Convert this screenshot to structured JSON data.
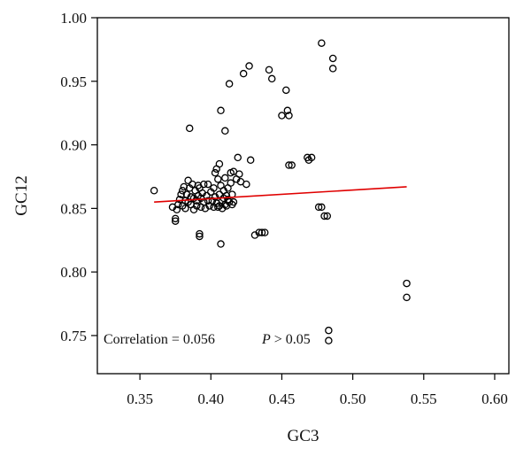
{
  "chart_data": {
    "type": "scatter",
    "title": "",
    "xlabel": "GC3",
    "ylabel": "GC12",
    "xlim": [
      0.32,
      0.61
    ],
    "ylim": [
      0.72,
      1.0
    ],
    "x_ticks": [
      "0.35",
      "0.40",
      "0.45",
      "0.50",
      "0.55",
      "0.60"
    ],
    "y_ticks": [
      "0.75",
      "0.80",
      "0.85",
      "0.90",
      "0.95",
      "1.00"
    ],
    "grid": false,
    "marker": "open-circle",
    "colors": {
      "points": "#000000",
      "trend_line": "#e00000",
      "frame": "#000000"
    },
    "trend_line": {
      "x": [
        0.36,
        0.538
      ],
      "y": [
        0.855,
        0.867
      ]
    },
    "annotations": {
      "correlation": "Correlation = 0.056",
      "p_symbol": "P",
      "p_rest": " > 0.05"
    },
    "points": [
      [
        0.36,
        0.864
      ],
      [
        0.373,
        0.851
      ],
      [
        0.375,
        0.842
      ],
      [
        0.375,
        0.84
      ],
      [
        0.376,
        0.849
      ],
      [
        0.377,
        0.853
      ],
      [
        0.378,
        0.857
      ],
      [
        0.379,
        0.861
      ],
      [
        0.38,
        0.864
      ],
      [
        0.38,
        0.852
      ],
      [
        0.381,
        0.867
      ],
      [
        0.382,
        0.856
      ],
      [
        0.382,
        0.85
      ],
      [
        0.383,
        0.861
      ],
      [
        0.384,
        0.872
      ],
      [
        0.384,
        0.855
      ],
      [
        0.385,
        0.913
      ],
      [
        0.385,
        0.866
      ],
      [
        0.386,
        0.859
      ],
      [
        0.386,
        0.853
      ],
      [
        0.387,
        0.869
      ],
      [
        0.388,
        0.858
      ],
      [
        0.388,
        0.849
      ],
      [
        0.389,
        0.864
      ],
      [
        0.39,
        0.856
      ],
      [
        0.39,
        0.852
      ],
      [
        0.391,
        0.868
      ],
      [
        0.391,
        0.86
      ],
      [
        0.392,
        0.866
      ],
      [
        0.392,
        0.83
      ],
      [
        0.392,
        0.828
      ],
      [
        0.393,
        0.858
      ],
      [
        0.393,
        0.851
      ],
      [
        0.394,
        0.862
      ],
      [
        0.395,
        0.869
      ],
      [
        0.395,
        0.855
      ],
      [
        0.396,
        0.85
      ],
      [
        0.397,
        0.86
      ],
      [
        0.398,
        0.869
      ],
      [
        0.398,
        0.856
      ],
      [
        0.399,
        0.852
      ],
      [
        0.4,
        0.863
      ],
      [
        0.401,
        0.856
      ],
      [
        0.402,
        0.866
      ],
      [
        0.402,
        0.851
      ],
      [
        0.403,
        0.878
      ],
      [
        0.403,
        0.859
      ],
      [
        0.404,
        0.881
      ],
      [
        0.404,
        0.854
      ],
      [
        0.405,
        0.873
      ],
      [
        0.405,
        0.851
      ],
      [
        0.406,
        0.885
      ],
      [
        0.406,
        0.861
      ],
      [
        0.406,
        0.852
      ],
      [
        0.407,
        0.927
      ],
      [
        0.407,
        0.822
      ],
      [
        0.407,
        0.868
      ],
      [
        0.408,
        0.856
      ],
      [
        0.408,
        0.85
      ],
      [
        0.409,
        0.864
      ],
      [
        0.409,
        0.858
      ],
      [
        0.41,
        0.911
      ],
      [
        0.41,
        0.874
      ],
      [
        0.41,
        0.853
      ],
      [
        0.411,
        0.86
      ],
      [
        0.411,
        0.852
      ],
      [
        0.412,
        0.866
      ],
      [
        0.412,
        0.857
      ],
      [
        0.413,
        0.948
      ],
      [
        0.413,
        0.855
      ],
      [
        0.414,
        0.878
      ],
      [
        0.414,
        0.87
      ],
      [
        0.415,
        0.861
      ],
      [
        0.415,
        0.853
      ],
      [
        0.416,
        0.879
      ],
      [
        0.416,
        0.855
      ],
      [
        0.418,
        0.873
      ],
      [
        0.419,
        0.89
      ],
      [
        0.42,
        0.877
      ],
      [
        0.421,
        0.871
      ],
      [
        0.423,
        0.956
      ],
      [
        0.425,
        0.869
      ],
      [
        0.427,
        0.962
      ],
      [
        0.428,
        0.888
      ],
      [
        0.431,
        0.829
      ],
      [
        0.434,
        0.831
      ],
      [
        0.436,
        0.831
      ],
      [
        0.438,
        0.831
      ],
      [
        0.441,
        0.959
      ],
      [
        0.443,
        0.952
      ],
      [
        0.45,
        0.923
      ],
      [
        0.453,
        0.943
      ],
      [
        0.454,
        0.927
      ],
      [
        0.455,
        0.923
      ],
      [
        0.455,
        0.884
      ],
      [
        0.457,
        0.884
      ],
      [
        0.468,
        0.89
      ],
      [
        0.469,
        0.888
      ],
      [
        0.471,
        0.89
      ],
      [
        0.476,
        0.851
      ],
      [
        0.478,
        0.851
      ],
      [
        0.478,
        0.98
      ],
      [
        0.48,
        0.844
      ],
      [
        0.482,
        0.844
      ],
      [
        0.483,
        0.754
      ],
      [
        0.483,
        0.746
      ],
      [
        0.486,
        0.968
      ],
      [
        0.486,
        0.96
      ],
      [
        0.538,
        0.791
      ],
      [
        0.538,
        0.78
      ]
    ]
  }
}
